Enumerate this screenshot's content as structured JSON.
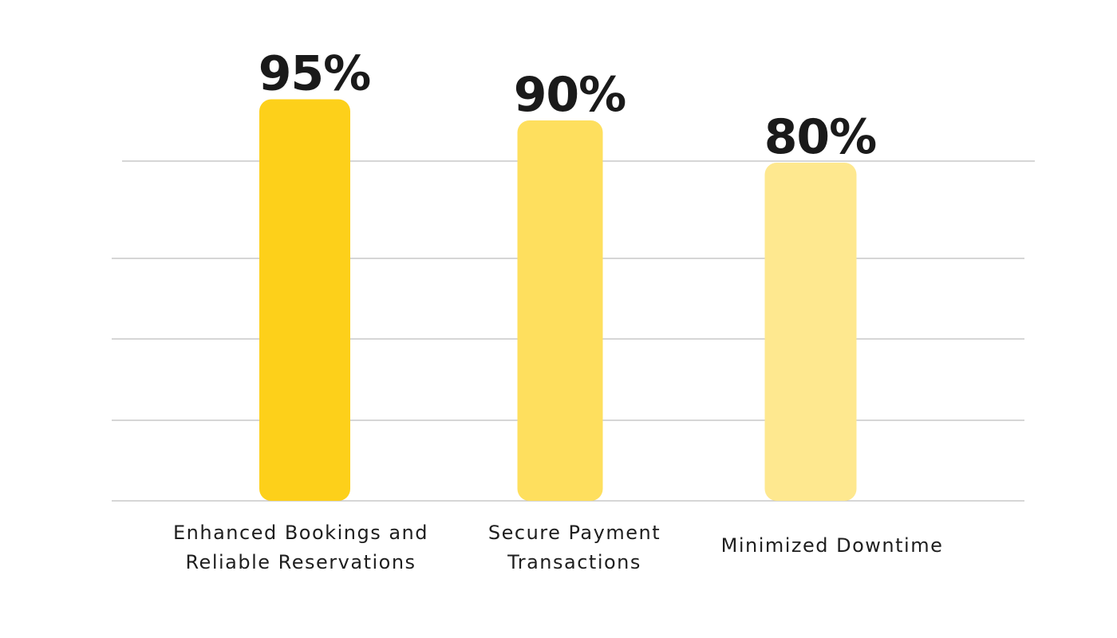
{
  "chart_data": {
    "type": "bar",
    "categories": [
      "Enhanced Bookings and Reliable Reservations",
      "Secure Payment Transactions",
      "Minimized Downtime"
    ],
    "category_lines": [
      [
        "Enhanced Bookings and",
        "Reliable Reservations"
      ],
      [
        "Secure Payment",
        "Transactions"
      ],
      [
        "Minimized Downtime"
      ]
    ],
    "values": [
      95,
      90,
      80
    ],
    "value_labels": [
      "95%",
      "90%",
      "80%"
    ],
    "bar_colors": [
      "#FDD01A",
      "#FEDF5E",
      "#FEE88F"
    ],
    "grid": true,
    "legend": "none"
  }
}
